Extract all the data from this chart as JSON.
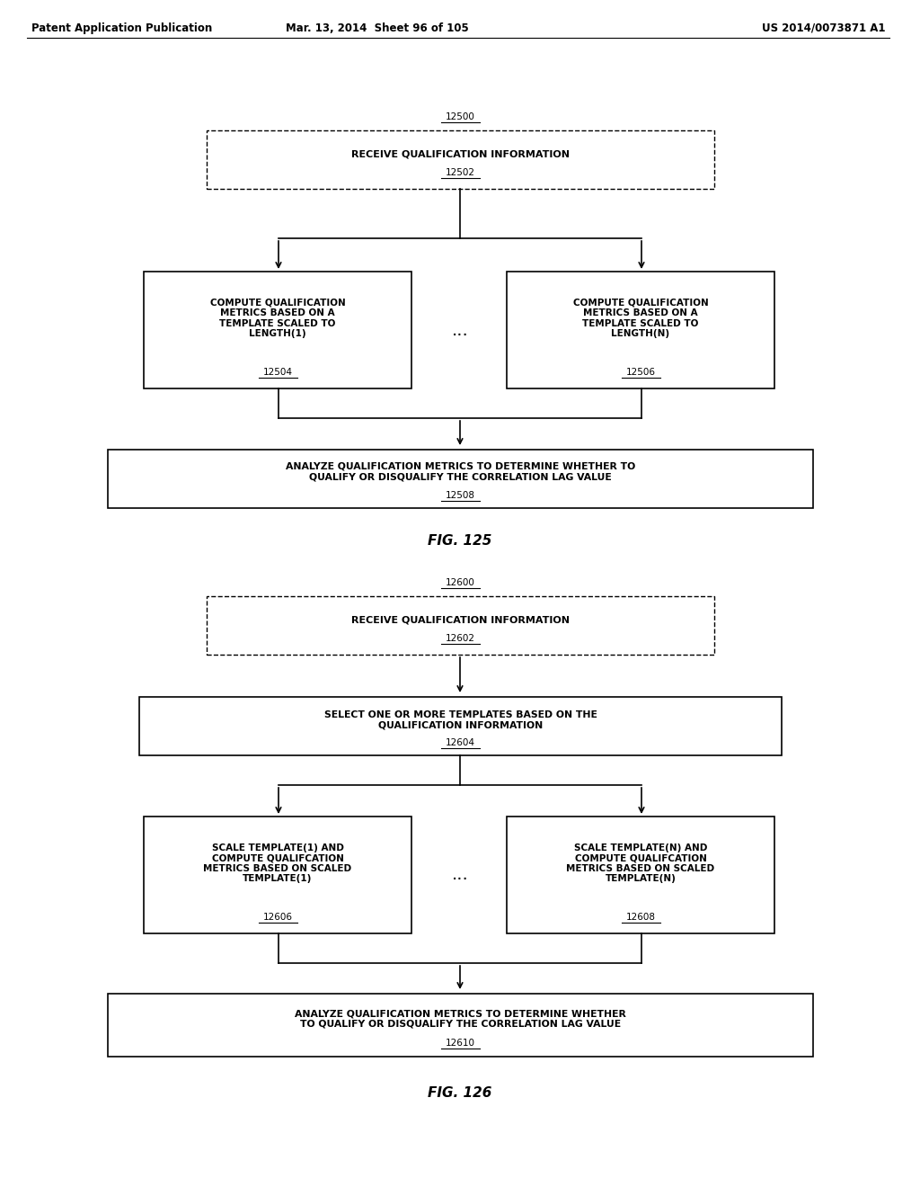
{
  "bg_color": "#ffffff",
  "header_left": "Patent Application Publication",
  "header_mid": "Mar. 13, 2014  Sheet 96 of 105",
  "header_right": "US 2014/0073871 A1",
  "fig125_label": "FIG. 125",
  "fig126_label": "FIG. 126",
  "fig125_top_id": "12500",
  "fig125_box1_text": "RECEIVE QUALIFICATION INFORMATION",
  "fig125_box1_id": "12502",
  "fig125_box2_text": "COMPUTE QUALIFICATION\nMETRICS BASED ON A\nTEMPLATE SCALED TO\nLENGTH(1)",
  "fig125_box2_id": "12504",
  "fig125_box3_text": "COMPUTE QUALIFICATION\nMETRICS BASED ON A\nTEMPLATE SCALED TO\nLENGTH(N)",
  "fig125_box3_id": "12506",
  "fig125_dots": "...",
  "fig125_box4_text": "ANALYZE QUALIFICATION METRICS TO DETERMINE WHETHER TO\nQUALIFY OR DISQUALIFY THE CORRELATION LAG VALUE",
  "fig125_box4_id": "12508",
  "fig126_top_id": "12600",
  "fig126_box1_text": "RECEIVE QUALIFICATION INFORMATION",
  "fig126_box1_id": "12602",
  "fig126_box2_text": "SELECT ONE OR MORE TEMPLATES BASED ON THE\nQUALIFICATION INFORMATION",
  "fig126_box2_id": "12604",
  "fig126_box3_text": "SCALE TEMPLATE(1) AND\nCOMPUTE QUALIFCATION\nMETRICS BASED ON SCALED\nTEMPLATE(1)",
  "fig126_box3_id": "12606",
  "fig126_box4_text": "SCALE TEMPLATE(N) AND\nCOMPUTE QUALIFCATION\nMETRICS BASED ON SCALED\nTEMPLATE(N)",
  "fig126_box4_id": "12608",
  "fig126_dots": "...",
  "fig126_box5_text": "ANALYZE QUALIFICATION METRICS TO DETERMINE WHETHER\nTO QUALIFY OR DISQUALIFY THE CORRELATION LAG VALUE",
  "fig126_box5_id": "12610"
}
